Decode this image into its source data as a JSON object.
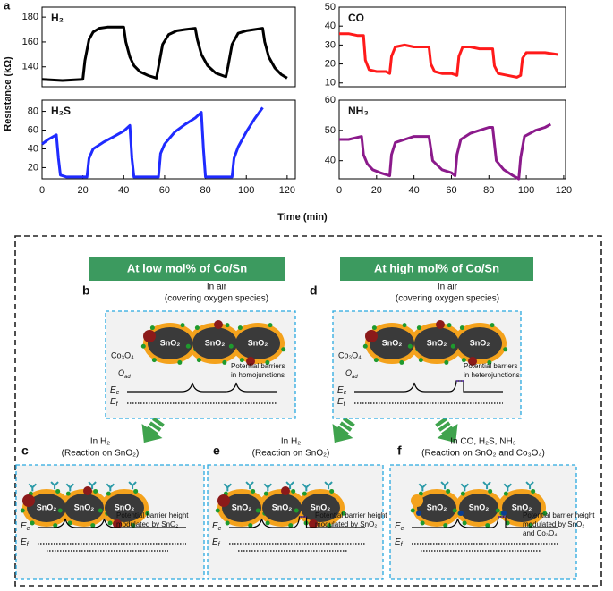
{
  "figure": {
    "panel_label": "a",
    "x_label": "Time (min)",
    "y_label": "Resistance (kΩ)"
  },
  "chart_data": [
    {
      "type": "line",
      "xlim": [
        0,
        124
      ],
      "ylim": [
        124,
        188
      ],
      "yticks": [
        140,
        160,
        180
      ],
      "x": [
        0,
        10,
        20,
        21,
        23,
        25,
        28,
        32,
        36,
        40,
        41,
        43,
        45,
        48,
        52,
        56,
        57,
        59,
        62,
        66,
        70,
        75,
        76,
        78,
        81,
        85,
        90,
        91,
        93,
        96,
        100,
        104,
        108,
        109,
        111,
        114,
        117,
        120
      ],
      "series": [
        {
          "name": "H₂",
          "color": "#000000",
          "values": [
            130,
            129,
            130,
            145,
            162,
            168,
            171,
            172,
            172,
            172,
            160,
            148,
            141,
            136,
            133,
            131,
            140,
            158,
            166,
            169,
            170,
            171,
            162,
            150,
            141,
            135,
            132,
            140,
            158,
            167,
            169,
            170,
            171,
            160,
            148,
            139,
            134,
            131
          ]
        }
      ]
    },
    {
      "type": "line",
      "xlim": [
        0,
        121
      ],
      "ylim": [
        8,
        50
      ],
      "yticks": [
        10,
        20,
        30,
        40,
        50
      ],
      "x": [
        0,
        5,
        10,
        13,
        14,
        16,
        20,
        25,
        27,
        28,
        30,
        35,
        40,
        45,
        48,
        49,
        51,
        55,
        60,
        63,
        64,
        66,
        70,
        75,
        80,
        82,
        83,
        85,
        90,
        95,
        97,
        98,
        100,
        105,
        110,
        117
      ],
      "series": [
        {
          "name": "CO",
          "color": "#ff1a1a",
          "values": [
            36,
            36,
            35,
            35,
            22,
            17,
            16,
            16,
            15,
            24,
            29,
            30,
            29,
            29,
            29,
            20,
            16,
            15,
            15,
            14,
            24,
            29,
            29,
            28,
            28,
            28,
            19,
            15,
            14,
            13,
            14,
            23,
            26,
            26,
            26,
            25
          ]
        }
      ]
    },
    {
      "type": "line",
      "xlim": [
        0,
        124
      ],
      "ylim": [
        8,
        92
      ],
      "yticks": [
        20,
        40,
        60,
        80
      ],
      "xticks": [
        0,
        20,
        40,
        60,
        80,
        100,
        120
      ],
      "x": [
        0,
        3,
        7,
        8,
        9,
        12,
        18,
        22,
        23,
        25,
        30,
        35,
        40,
        43,
        44,
        45,
        50,
        55,
        57,
        58,
        60,
        65,
        70,
        75,
        78,
        79,
        80,
        85,
        90,
        93,
        94,
        96,
        100,
        104,
        108
      ],
      "series": [
        {
          "name": "H₂S",
          "color": "#1f2bff",
          "values": [
            45,
            50,
            55,
            30,
            12,
            10,
            10,
            10,
            30,
            40,
            47,
            53,
            59,
            65,
            30,
            10,
            10,
            10,
            10,
            35,
            45,
            58,
            66,
            73,
            79,
            40,
            10,
            10,
            10,
            10,
            30,
            42,
            58,
            72,
            84
          ]
        }
      ]
    },
    {
      "type": "line",
      "xlim": [
        0,
        121
      ],
      "ylim": [
        34,
        60
      ],
      "yticks": [
        40,
        50,
        60
      ],
      "xticks": [
        0,
        20,
        40,
        60,
        80,
        100,
        120
      ],
      "x": [
        0,
        5,
        12,
        13,
        15,
        18,
        22,
        27,
        28,
        30,
        35,
        40,
        45,
        48,
        50,
        55,
        60,
        62,
        63,
        65,
        70,
        75,
        80,
        82,
        84,
        88,
        93,
        96,
        97,
        99,
        105,
        110,
        113
      ],
      "series": [
        {
          "name": "NH₃",
          "color": "#8b1a8b",
          "values": [
            47,
            47,
            48,
            42,
            39,
            37,
            36,
            35,
            42,
            46,
            47,
            48,
            48,
            48,
            40,
            37,
            36,
            35,
            42,
            47,
            49,
            50,
            51,
            51,
            40,
            37,
            35,
            34,
            41,
            48,
            50,
            51,
            52
          ]
        }
      ]
    }
  ],
  "diagram": {
    "headers": [
      "At low mol% of Co/Sn",
      "At high mol% of Co/Sn"
    ],
    "panels": [
      {
        "label": "b",
        "caption": [
          "In air",
          "(covering oxygen species)"
        ],
        "grains": [
          "SnO₂",
          "SnO₂",
          "SnO₂"
        ],
        "particle": "Co₃O₄",
        "adsorbate": {
          "main": "O",
          "sub": "ad"
        },
        "note": [
          "Potential barriers",
          "in homojunctions"
        ],
        "bands": [
          {
            "main": "E",
            "sub": "c"
          },
          {
            "main": "E",
            "sub": "f"
          }
        ]
      },
      {
        "label": "d",
        "caption": [
          "In air",
          "(covering oxygen species)"
        ],
        "grains": [
          "SnO₂",
          "SnO₂",
          "SnO₂"
        ],
        "particle": "Co₃O₄",
        "adsorbate": {
          "main": "O",
          "sub": "ad"
        },
        "note": [
          "Potential barriers",
          "in heterojunctions"
        ],
        "bands": [
          {
            "main": "E",
            "sub": "c"
          },
          {
            "main": "E",
            "sub": "f"
          }
        ]
      },
      {
        "label": "c",
        "caption": [
          "In H₂",
          "(Reaction on SnO₂)"
        ],
        "grains": [
          "SnO₂",
          "SnO₂",
          "SnO₂"
        ],
        "note": [
          "Potential barrier height",
          "modulated by SnO₂"
        ],
        "bands": [
          {
            "main": "E",
            "sub": "c"
          },
          {
            "main": "E",
            "sub": "f"
          }
        ]
      },
      {
        "label": "e",
        "caption": [
          "In H₂",
          "(Reaction on SnO₂)"
        ],
        "grains": [
          "SnO₂",
          "SnO₂",
          "SnO₂"
        ],
        "note": [
          "Potential barrier height",
          "modulated by SnO₂"
        ],
        "bands": [
          {
            "main": "E",
            "sub": "c"
          },
          {
            "main": "E",
            "sub": "f"
          }
        ]
      },
      {
        "label": "f",
        "caption": [
          "In CO, H₂S, NH₃",
          "(Reaction on SnO₂ and Co₃O₄)"
        ],
        "grains": [
          "SnO₂",
          "SnO₂",
          "SnO₂"
        ],
        "note": [
          "Potential barrier height",
          "modulated by SnO₂",
          "and Co₃O₄"
        ],
        "bands": [
          {
            "main": "E",
            "sub": "c"
          },
          {
            "main": "E",
            "sub": "f"
          }
        ]
      }
    ]
  }
}
